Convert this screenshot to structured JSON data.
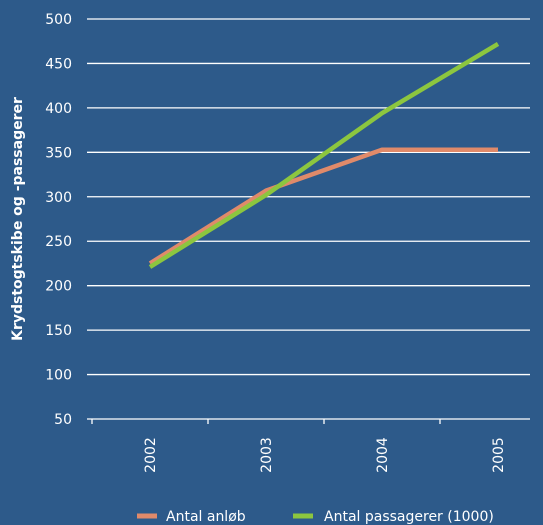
{
  "chart_data": {
    "type": "line",
    "title": "",
    "xlabel": "",
    "ylabel": "Krydstogtskibe og -passagerer",
    "x": [
      "2002",
      "2003",
      "2004",
      "2005"
    ],
    "ylim": [
      50,
      500
    ],
    "yticks": [
      50,
      100,
      150,
      200,
      250,
      300,
      350,
      400,
      450,
      500
    ],
    "grid": true,
    "legend": "bottom",
    "series": [
      {
        "name": "Antal anløb",
        "values": [
          225,
          307,
          353,
          353
        ],
        "color": "#e08a6a"
      },
      {
        "name": "Antal passagerer (1000)",
        "values": [
          221,
          302,
          394,
          472
        ],
        "color": "#8cc63f"
      }
    ],
    "colors": {
      "background": "#2d5a8a",
      "grid": "#ffffff",
      "text": "#ffffff"
    }
  }
}
